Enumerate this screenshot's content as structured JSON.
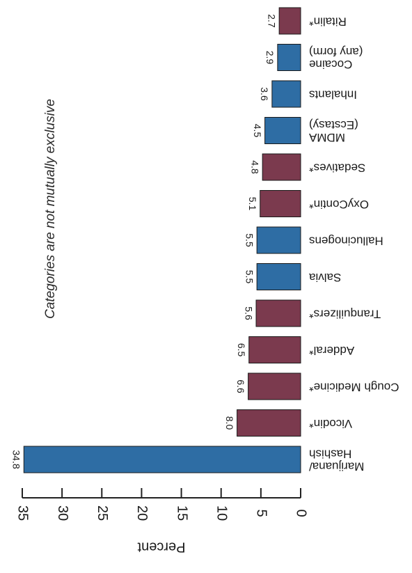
{
  "chart_data": {
    "type": "bar",
    "orientation": "horizontal",
    "rotation": "image rotated 90 degrees (rendered rotated, text reads bottom-to-top mirrored)",
    "subtitle": "Categories are not mutually exclusive",
    "title": "",
    "ylabel": "Percent",
    "xlabel": "",
    "ylim": [
      0,
      35
    ],
    "yticks": [
      "35",
      "30",
      "25",
      "20",
      "15",
      "10",
      "5",
      "0"
    ],
    "grid": false,
    "categories": [
      [
        "Marijuana/",
        "Hashish"
      ],
      [
        "Vicodin*"
      ],
      [
        "Cough Medicine*"
      ],
      [
        "Adderal*"
      ],
      [
        "Tranquilizers*"
      ],
      [
        "Salvia"
      ],
      [
        "Hallucinogens"
      ],
      [
        "OxyContin*"
      ],
      [
        "Sedatives*"
      ],
      [
        "MDMA",
        "(Ecstasy)"
      ],
      [
        "Inhalants"
      ],
      [
        "Cocaine",
        "(any form)"
      ],
      [
        "Ritalin*"
      ]
    ],
    "values": [
      34.8,
      8.0,
      6.6,
      6.5,
      5.6,
      5.5,
      5.5,
      5.1,
      4.8,
      4.5,
      3.6,
      2.9,
      2.7
    ],
    "value_labels": [
      "34.8",
      "8.0",
      "6.6",
      "6.5",
      "5.6",
      "5.5",
      "5.5",
      "5.1",
      "4.8",
      "4.5",
      "3.6",
      "2.9",
      "2.7"
    ],
    "colors": [
      "#2e6da4",
      "#7b3a4e",
      "#7b3a4e",
      "#7b3a4e",
      "#7b3a4e",
      "#2e6da4",
      "#2e6da4",
      "#7b3a4e",
      "#7b3a4e",
      "#2e6da4",
      "#2e6da4",
      "#2e6da4",
      "#7b3a4e"
    ]
  }
}
